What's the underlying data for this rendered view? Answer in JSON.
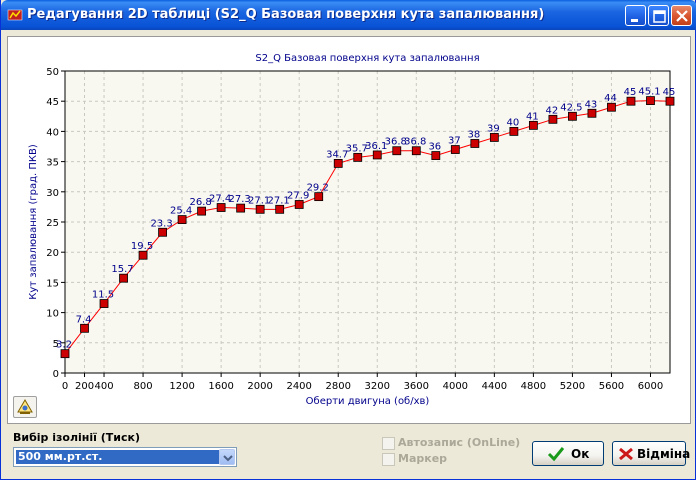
{
  "window": {
    "title": "Редагування 2D таблиці (S2_Q Базовая поверхня кута запалювання)"
  },
  "titlebar_buttons": [
    "minimize-icon",
    "maximize-icon",
    "close-icon"
  ],
  "chart_data": {
    "type": "line",
    "title": "S2_Q Базовая поверхня кута запалювання",
    "xlabel": "Оберти двигуна (об/хв)",
    "ylabel": "Кут запалювання (град. ПКВ)",
    "xlim": [
      0,
      6200
    ],
    "ylim": [
      0,
      50
    ],
    "x_ticks": [
      "0",
      "200",
      "400",
      "800",
      "1200",
      "1600",
      "2000",
      "2400",
      "2800",
      "3200",
      "3600",
      "4000",
      "4400",
      "4800",
      "5200",
      "5600",
      "6000"
    ],
    "y_ticks": [
      "0",
      "5",
      "10",
      "15",
      "20",
      "25",
      "30",
      "35",
      "40",
      "45",
      "50"
    ],
    "grid": true,
    "line_color": "#ff0000",
    "marker_color": "#cc0000",
    "label_color": "#00008b",
    "series": [
      {
        "x": [
          0,
          200,
          400,
          600,
          800,
          1000,
          1200,
          1400,
          1600,
          1800,
          2000,
          2200,
          2400,
          2600,
          2800,
          3000,
          3200,
          3400,
          3600,
          3800,
          4000,
          4200,
          4400,
          4600,
          4800,
          5000,
          5200,
          5400,
          5600,
          5800,
          6000,
          6200
        ],
        "y": [
          3.2,
          7.4,
          11.5,
          15.7,
          19.5,
          23.3,
          25.4,
          26.8,
          27.4,
          27.3,
          27.1,
          27.1,
          27.9,
          29.2,
          34.7,
          35.7,
          36.1,
          36.8,
          36.8,
          36,
          37,
          38,
          39,
          40,
          41,
          42,
          42.5,
          43,
          44,
          45,
          45.1,
          45
        ],
        "labels": [
          "3.2",
          "7.4",
          "11.5",
          "15.7",
          "19.5",
          "23.3",
          "25.4",
          "26.8",
          "27.4",
          "27.3",
          "27.1",
          "27.1",
          "27.9",
          "29.2",
          "34.7",
          "35.7",
          "36.1",
          "36.8",
          "36.8",
          "36",
          "37",
          "38",
          "39",
          "40",
          "41",
          "42",
          "42.5",
          "43",
          "44",
          "45",
          "45.1",
          "45"
        ]
      }
    ]
  },
  "toolbar": {
    "properties_button_icon": "chart-properties-icon"
  },
  "isoline": {
    "label": "Вибір ізолінії (Тиск)",
    "selected": "500 мм.рт.ст."
  },
  "options": {
    "autosave_label": "Автозапис (OnLine)",
    "marker_label": "Маркер"
  },
  "buttons": {
    "ok_label": "Ок",
    "cancel_label": "Відміна"
  }
}
